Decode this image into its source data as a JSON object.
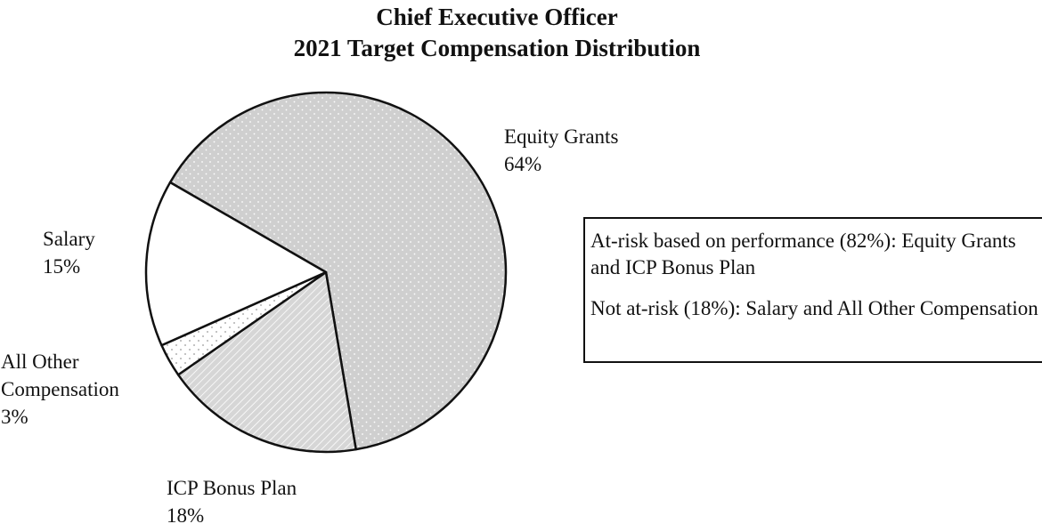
{
  "chart_data": {
    "type": "pie",
    "title": "Chief Executive Officer",
    "subtitle": "2021 Target Compensation Distribution",
    "slices": [
      {
        "name": "Equity Grants",
        "value": 64,
        "value_label": "64%",
        "fill": "#cfcfcf",
        "pattern": "dots"
      },
      {
        "name": "ICP Bonus Plan",
        "value": 18,
        "value_label": "18%",
        "fill": "#d9d9d9",
        "pattern": "diagonal-lines"
      },
      {
        "name": "All Other Compensation",
        "value": 3,
        "value_label": "3%",
        "fill": "#ffffff",
        "pattern": "sparse-dots"
      },
      {
        "name": "Salary",
        "value": 15,
        "value_label": "15%",
        "fill": "#ffffff",
        "pattern": "none"
      }
    ],
    "slice_labels": {
      "equity": [
        "Equity Grants",
        "64%"
      ],
      "salary": [
        "Salary",
        "15%"
      ],
      "other": [
        "All Other",
        "Compensation",
        "3%"
      ],
      "icp": [
        "ICP Bonus Plan",
        "18%"
      ]
    },
    "legend": "none"
  },
  "annotation_box": {
    "line1": "At-risk based on performance (82%): Equity Grants and ICP Bonus Plan",
    "line2": "Not at-risk (18%): Salary and All Other Compensation"
  },
  "colors": {
    "outline": "#111111",
    "equity_fill": "#cfcfcf",
    "icp_fill": "#d9d9d9"
  }
}
